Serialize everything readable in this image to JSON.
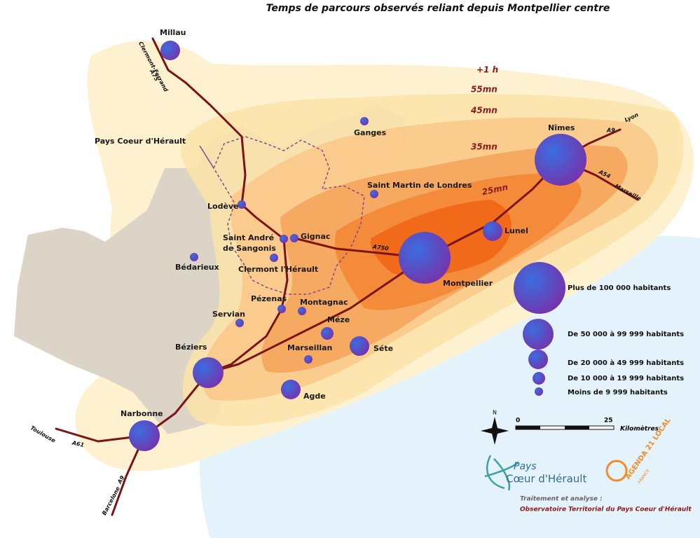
{
  "title": "Temps de parcours observés reliant depuis Montpellier centre",
  "isochrones": [
    "+1 h",
    "55mn",
    "45mn",
    "35mn",
    "25mn"
  ],
  "region_label": "Pays Coeur d'Hérault",
  "cities": [
    "Millau",
    "Ganges",
    "Nîmes",
    "Saint Martin de Londres",
    "Lodève",
    "Lunel",
    "Gignac",
    "Saint André",
    "de Sangonis",
    "Montpellier",
    "Bédarieux",
    "Clermont l'Hérault",
    "Pézenas",
    "Montagnac",
    "Servian",
    "Méze",
    "Séte",
    "Béziers",
    "Marseillan",
    "Agde",
    "Narbonne"
  ],
  "roads": [
    "Clermont-Ferrand",
    "A75",
    "A9",
    "Lyon",
    "A54",
    "Marseille",
    "A750",
    "Toulouse",
    "A61",
    "Barcelone",
    "A9"
  ],
  "legend": [
    "Plus de  100 000 habitants",
    "De 50 000 à 99 999 habitants",
    "De 20 000 à 49 999 habitants",
    "De 10 000 à 19 999 habitants",
    "Moins de 9 999 habitants"
  ],
  "scale": {
    "north": "N",
    "start": 0,
    "end": 25,
    "unit": "Kilomètres"
  },
  "logos": {
    "pays": "Pays",
    "coeur": "Cœur d'Hérault",
    "agenda": "AGENDA 21 LOCAL",
    "france": "FRANCE"
  },
  "credits": [
    "Traitement et analyse :",
    "Observatoire Territorial du Pays Coeur d'Hérault"
  ]
}
